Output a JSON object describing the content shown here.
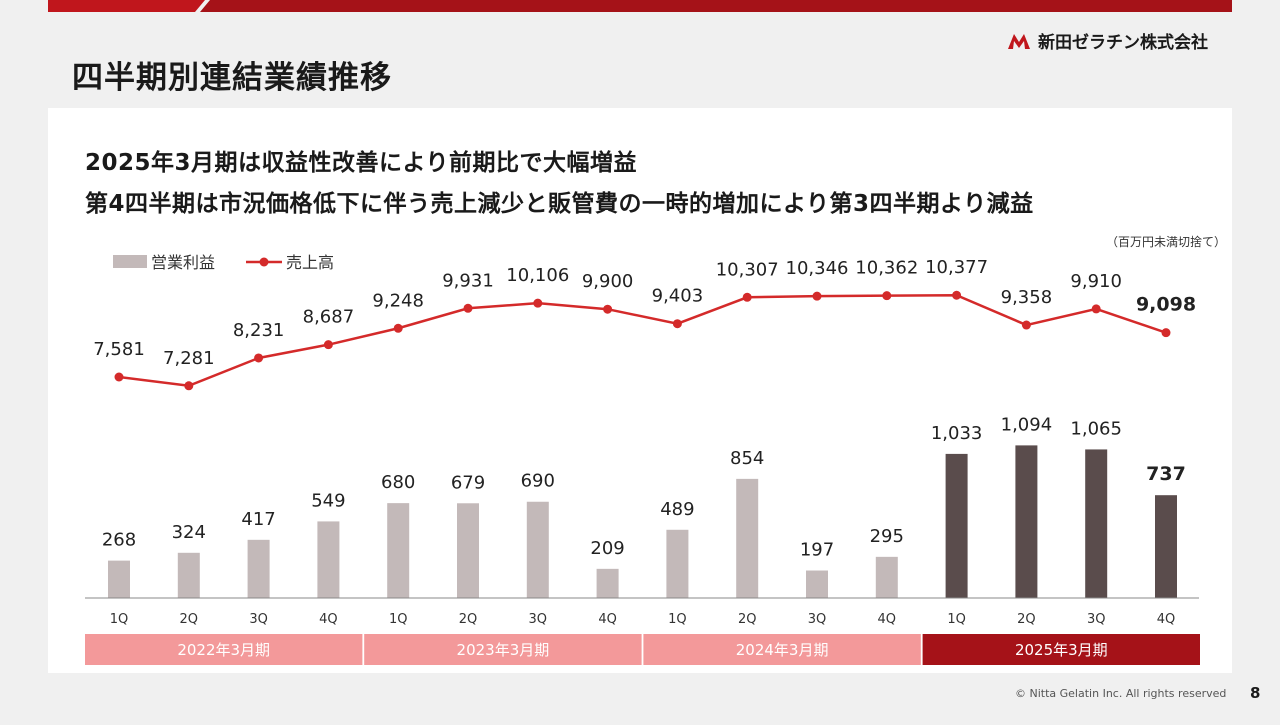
{
  "title": "四半期別連結業績推移",
  "brand": {
    "name": "新田ゼラチン株式会社",
    "accent": "#c0161c",
    "dark_red": "#a51218",
    "pink": "#f3999a",
    "light_bar": "#c3b9b9",
    "dark_bar": "#5a4c4c",
    "line": "#d42a2a"
  },
  "headlines": [
    "2025年3月期は収益性改善により前期比で大幅増益",
    "第4四半期は市況価格低下に伴う売上減少と販管費の一時的増加により第3四半期より減益"
  ],
  "unit_note": "（百万円未満切捨て）",
  "footer": {
    "copyright": "© Nitta Gelatin Inc. All rights reserved",
    "page": "8"
  },
  "chart_data": {
    "type": "bar",
    "legend_position": "top-left",
    "categories": [
      "1Q",
      "2Q",
      "3Q",
      "4Q",
      "1Q",
      "2Q",
      "3Q",
      "4Q",
      "1Q",
      "2Q",
      "3Q",
      "4Q",
      "1Q",
      "2Q",
      "3Q",
      "4Q"
    ],
    "groups": [
      {
        "label": "2022年3月期",
        "start": 0,
        "end": 3
      },
      {
        "label": "2023年3月期",
        "start": 4,
        "end": 7
      },
      {
        "label": "2024年3月期",
        "start": 8,
        "end": 11
      },
      {
        "label": "2025年3月期",
        "start": 12,
        "end": 15,
        "highlight": true
      }
    ],
    "series": [
      {
        "name": "営業利益",
        "type": "bar",
        "values": [
          268,
          324,
          417,
          549,
          680,
          679,
          690,
          209,
          489,
          854,
          197,
          295,
          1033,
          1094,
          1065,
          737
        ]
      },
      {
        "name": "売上高",
        "type": "line",
        "values": [
          7581,
          7281,
          8231,
          8687,
          9248,
          9931,
          10106,
          9900,
          9403,
          10307,
          10346,
          10362,
          10377,
          9358,
          9910,
          9098
        ]
      }
    ],
    "value_labels": {
      "bar": [
        "268",
        "324",
        "417",
        "549",
        "680",
        "679",
        "690",
        "209",
        "489",
        "854",
        "197",
        "295",
        "1,033",
        "1,094",
        "1,065",
        "737"
      ],
      "line": [
        "7,581",
        "7,281",
        "8,231",
        "8,687",
        "9,248",
        "9,931",
        "10,106",
        "9,900",
        "9,403",
        "10,307",
        "10,346",
        "10,362",
        "10,377",
        "9,358",
        "9,910",
        "9,098"
      ]
    }
  }
}
